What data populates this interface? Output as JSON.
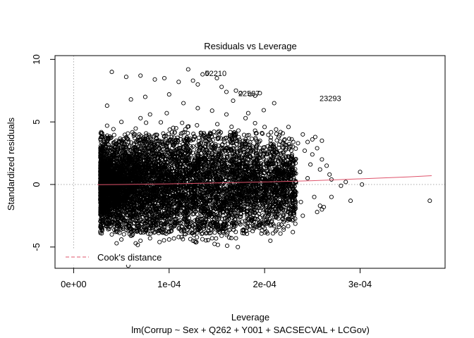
{
  "chart_data": {
    "type": "scatter",
    "title": "Residuals vs Leverage",
    "xlabel": "Leverage",
    "ylabel": "Standardized residuals",
    "subtitle": "lm(Corrup ~ Sex + Q262 + Y001 + SACSECVAL + LCGov)",
    "xlim": [
      -1.95e-05,
      0.000389
    ],
    "ylim": [
      -6.7,
      10.3
    ],
    "x_ticks": [
      {
        "value": 0,
        "label": "0e+00"
      },
      {
        "value": 0.0001,
        "label": "1e-04"
      },
      {
        "value": 0.0002,
        "label": "2e-04"
      },
      {
        "value": 0.0003,
        "label": "3e-04"
      }
    ],
    "y_ticks": [
      {
        "value": -5,
        "label": "-5"
      },
      {
        "value": 0,
        "label": "0"
      },
      {
        "value": 5,
        "label": "5"
      },
      {
        "value": 10,
        "label": "10"
      }
    ],
    "reference_lines": {
      "x": 0,
      "y": 0,
      "style": "dotted",
      "color": "#aaaaaa"
    },
    "series": [
      {
        "sampled": true,
        "color": "#000000",
        "points": [
          [
            4e-05,
            9.0
          ],
          [
            5.5e-05,
            8.6
          ],
          [
            7e-05,
            8.7
          ],
          [
            8.5e-05,
            8.4
          ],
          [
            9.5e-05,
            8.5
          ],
          [
            0.00011,
            8.2
          ],
          [
            0.00012,
            9.2
          ],
          [
            0.000125,
            8.3
          ],
          [
            0.00013,
            8.0
          ],
          [
            0.000135,
            8.8
          ],
          [
            0.00014,
            8.9
          ],
          [
            0.00015,
            8.5
          ],
          [
            0.000155,
            7.8
          ],
          [
            0.00016,
            7.4
          ],
          [
            0.00017,
            7.5
          ],
          [
            0.000175,
            7.3
          ],
          [
            0.000185,
            7.2
          ],
          [
            0.00019,
            7.1
          ],
          [
            0.000195,
            7.3
          ],
          [
            0.00021,
            6.5
          ],
          [
            7.5e-05,
            7.0
          ],
          [
            0.0001,
            7.2
          ],
          [
            3.5e-05,
            6.3
          ],
          [
            6e-05,
            6.8
          ],
          [
            0.000115,
            6.5
          ],
          [
            0.000225,
            4.6
          ],
          [
            0.00024,
            4.0
          ],
          [
            0.000245,
            3.4
          ],
          [
            0.00025,
            3.6
          ],
          [
            0.000255,
            2.9
          ],
          [
            0.00026,
            2.0
          ],
          [
            0.000265,
            1.5
          ],
          [
            0.00027,
            0.4
          ],
          [
            0.00028,
            -0.1
          ],
          [
            0.000285,
            0.2
          ],
          [
            0.0003,
            1.0
          ],
          [
            0.000302,
            0.0
          ],
          [
            0.000252,
            -1.0
          ],
          [
            0.000262,
            -1.8
          ],
          [
            0.00026,
            -2.0
          ],
          [
            0.000255,
            -2.2
          ],
          [
            0.00024,
            -2.5
          ],
          [
            0.00023,
            -2.8
          ],
          [
            0.00022,
            -3.0
          ],
          [
            0.000215,
            -3.2
          ],
          [
            0.00021,
            -2.6
          ],
          [
            0.0002,
            -3.5
          ],
          [
            0.00019,
            -3.4
          ],
          [
            0.000178,
            -3.6
          ],
          [
            0.00017,
            -4.3
          ],
          [
            0.000155,
            -4.1
          ],
          [
            0.000145,
            -4.3
          ],
          [
            0.000135,
            -3.9
          ],
          [
            0.000125,
            -4.5
          ],
          [
            0.00011,
            -4.2
          ],
          [
            0.0001,
            -4.4
          ],
          [
            9e-05,
            -4.6
          ],
          [
            8e-05,
            -4.3
          ],
          [
            7e-05,
            -4.5
          ],
          [
            6e-05,
            -4.1
          ],
          [
            5e-05,
            -4.4
          ],
          [
            4e-05,
            -4.0
          ],
          [
            3e-05,
            -3.6
          ],
          [
            2.8e-05,
            -2.4
          ],
          [
            4.5e-05,
            -4.7
          ],
          [
            6.5e-05,
            -4.7
          ],
          [
            0.000172,
            -5.0
          ],
          [
            0.000186,
            -2.9
          ],
          [
            0.000206,
            -4.5
          ],
          [
            0.000224,
            -2.2
          ],
          [
            0.000235,
            3.3
          ],
          [
            0.000242,
            2.7
          ],
          [
            0.00025,
            2.4
          ],
          [
            0.000232,
            2.0
          ],
          [
            0.000248,
            1.6
          ],
          [
            0.000258,
            1.2
          ],
          [
            0.00029,
            -1.3
          ],
          [
            0.000258,
            -1.7
          ],
          [
            0.00027,
            -1.0
          ],
          [
            0.000238,
            -1.4
          ],
          [
            0.00026,
            3.5
          ],
          [
            0.000253,
            3.8
          ],
          [
            0.000212,
            4.4
          ],
          [
            0.0002,
            4.6
          ],
          [
            0.00019,
            4.9
          ],
          [
            0.00018,
            5.3
          ],
          [
            0.00016,
            5.6
          ],
          [
            0.000145,
            5.9
          ],
          [
            0.00013,
            6.1
          ],
          [
            9.75e-05,
            5.7
          ],
          [
            8e-05,
            5.6
          ],
          [
            7e-05,
            5.3
          ],
          [
            5e-05,
            5.0
          ],
          [
            3.5e-05,
            4.7
          ],
          [
            0.000167,
            6.7
          ],
          [
            0.000373,
            -1.3
          ],
          [
            0.000268,
            0.8
          ],
          [
            0.000245,
            0.5
          ],
          [
            0.000232,
            -0.6
          ],
          [
            0.00022,
            1.4
          ]
        ]
      },
      {
        "name": "Cook's distance",
        "type": "line",
        "dashed": true,
        "color": "#df536b",
        "x": [],
        "y": []
      },
      {
        "type": "line",
        "color": "#df536b",
        "x": [
          2.5e-05,
          5e-05,
          0.0001,
          0.00015,
          0.0002,
          0.00025,
          0.0003,
          0.00035,
          0.000375
        ],
        "y": [
          -0.02,
          0.0,
          0.05,
          0.12,
          0.2,
          0.3,
          0.45,
          0.6,
          0.7
        ]
      }
    ],
    "annotations": [
      {
        "x": 0.0001375,
        "y": 8.9,
        "text": "52210"
      },
      {
        "x": 0.0001725,
        "y": 7.3,
        "text": "22587"
      },
      {
        "x": 0.0002575,
        "y": 6.9,
        "text": "23293"
      }
    ],
    "legend": {
      "position": "bottom-left",
      "entries": [
        "Cook's distance"
      ]
    },
    "grid": false
  }
}
